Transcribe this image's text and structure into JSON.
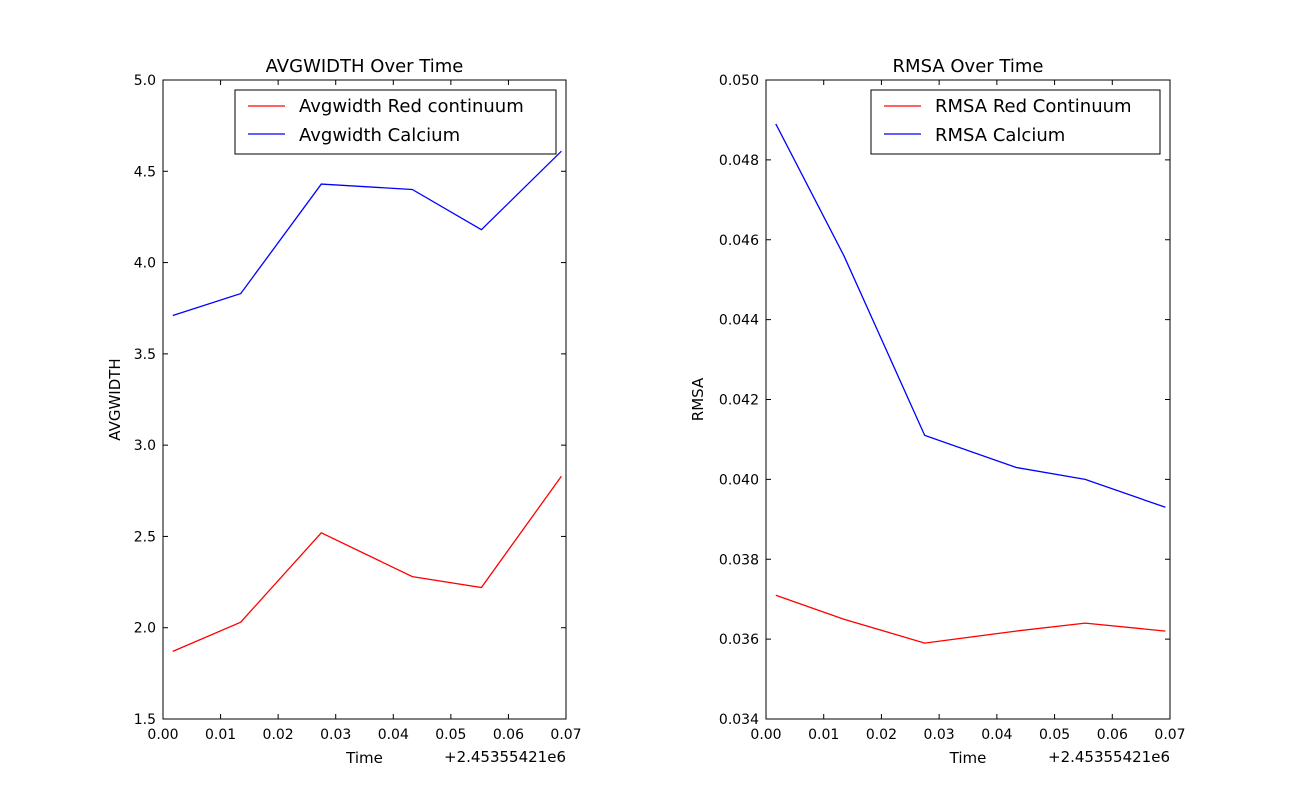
{
  "chart_data": [
    {
      "type": "line",
      "title": "AVGWIDTH Over Time",
      "xlabel": "Time",
      "ylabel": "AVGWIDTH",
      "x_offset_label": "+2.45355421e6",
      "xlim": [
        0.0,
        0.07
      ],
      "ylim": [
        1.5,
        5.0
      ],
      "x_ticks": [
        "0.00",
        "0.01",
        "0.02",
        "0.03",
        "0.04",
        "0.05",
        "0.06",
        "0.07"
      ],
      "y_ticks": [
        "1.5",
        "2.0",
        "2.5",
        "3.0",
        "3.5",
        "4.0",
        "4.5",
        "5.0"
      ],
      "legend_position": "top-right",
      "grid": false,
      "series": [
        {
          "name": "Avgwidth Red continuum",
          "color": "#ff0000",
          "x": [
            0.0017,
            0.0135,
            0.0275,
            0.0433,
            0.0553,
            0.0692
          ],
          "y": [
            1.87,
            2.03,
            2.52,
            2.28,
            2.22,
            2.83
          ]
        },
        {
          "name": "Avgwidth Calcium",
          "color": "#0000ff",
          "x": [
            0.0017,
            0.0135,
            0.0275,
            0.0433,
            0.0553,
            0.0692
          ],
          "y": [
            3.71,
            3.83,
            4.43,
            4.4,
            4.18,
            4.61
          ]
        }
      ]
    },
    {
      "type": "line",
      "title": "RMSA Over Time",
      "xlabel": "Time",
      "ylabel": "RMSA",
      "x_offset_label": "+2.45355421e6",
      "xlim": [
        0.0,
        0.07
      ],
      "ylim": [
        0.034,
        0.05
      ],
      "x_ticks": [
        "0.00",
        "0.01",
        "0.02",
        "0.03",
        "0.04",
        "0.05",
        "0.06",
        "0.07"
      ],
      "y_ticks": [
        "0.034",
        "0.036",
        "0.038",
        "0.040",
        "0.042",
        "0.044",
        "0.046",
        "0.048",
        "0.050"
      ],
      "legend_position": "top-right",
      "grid": false,
      "series": [
        {
          "name": "RMSA Red Continuum",
          "color": "#ff0000",
          "x": [
            0.0017,
            0.0135,
            0.0275,
            0.0433,
            0.0553,
            0.0692
          ],
          "y": [
            0.0371,
            0.0365,
            0.0359,
            0.0362,
            0.0364,
            0.0362
          ]
        },
        {
          "name": "RMSA Calcium",
          "color": "#0000ff",
          "x": [
            0.0017,
            0.0135,
            0.0275,
            0.0433,
            0.0553,
            0.0692
          ],
          "y": [
            0.0489,
            0.0456,
            0.0411,
            0.0403,
            0.04,
            0.0393
          ]
        }
      ]
    }
  ]
}
